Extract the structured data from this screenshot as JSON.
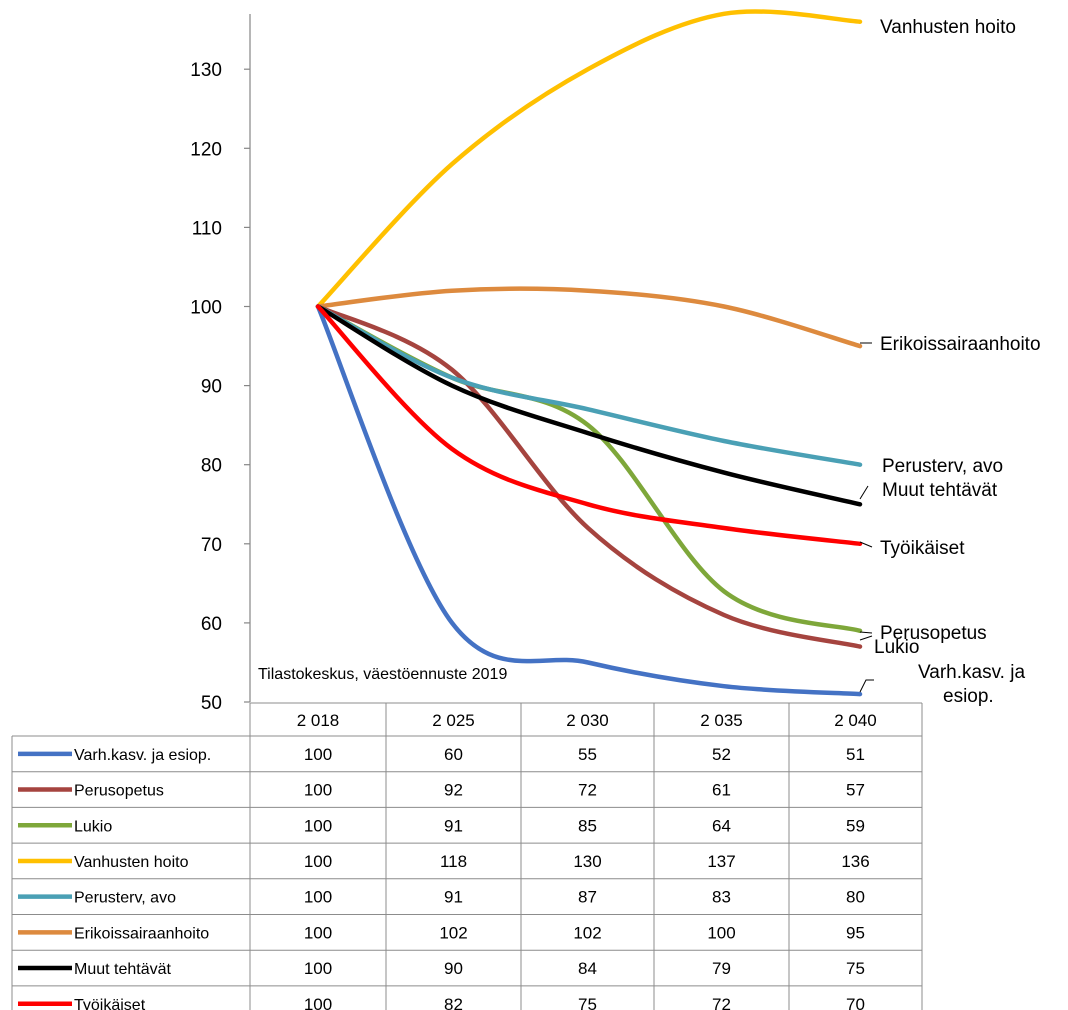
{
  "chart_data": {
    "type": "line",
    "x": [
      "2 018",
      "2 025",
      "2 030",
      "2 035",
      "2 040"
    ],
    "ylim": [
      50,
      137
    ],
    "yticks": [
      50,
      60,
      70,
      80,
      90,
      100,
      110,
      120,
      130
    ],
    "note": "Tilastokeskus, väestöennuste 2019",
    "grid": false,
    "series": [
      {
        "name": "Varh.kasv. ja esiop.",
        "values": [
          100,
          60,
          55,
          52,
          51
        ],
        "color": "#4472c4",
        "end_label": [
          "Varh.kasv. ja",
          "esiop."
        ]
      },
      {
        "name": "Perusopetus",
        "values": [
          100,
          92,
          72,
          61,
          57
        ],
        "color": "#a5443f",
        "end_label": [
          "Perusopetus"
        ]
      },
      {
        "name": "Lukio",
        "values": [
          100,
          91,
          85,
          64,
          59
        ],
        "color": "#7ea73a",
        "end_label": [
          "Lukio"
        ]
      },
      {
        "name": "Vanhusten hoito",
        "values": [
          100,
          118,
          130,
          137,
          136
        ],
        "color": "#ffc000",
        "end_label": [
          "Vanhusten hoito"
        ]
      },
      {
        "name": "Perusterv, avo",
        "values": [
          100,
          91,
          87,
          83,
          80
        ],
        "color": "#4aa0b5",
        "end_label": [
          "Perusterv, avo"
        ]
      },
      {
        "name": "Erikoissairaanhoito",
        "values": [
          100,
          102,
          102,
          100,
          95
        ],
        "color": "#dd8a3e",
        "end_label": [
          "Erikoissairaanhoito"
        ]
      },
      {
        "name": "Muut tehtävät",
        "values": [
          100,
          90,
          84,
          79,
          75
        ],
        "color": "#000000",
        "end_label": [
          "Muut tehtävät"
        ]
      },
      {
        "name": "Työikäiset",
        "values": [
          100,
          82,
          75,
          72,
          70
        ],
        "color": "#ff0000",
        "end_label": [
          "Työikäiset"
        ],
        "label_color": "#ff0000"
      }
    ]
  }
}
